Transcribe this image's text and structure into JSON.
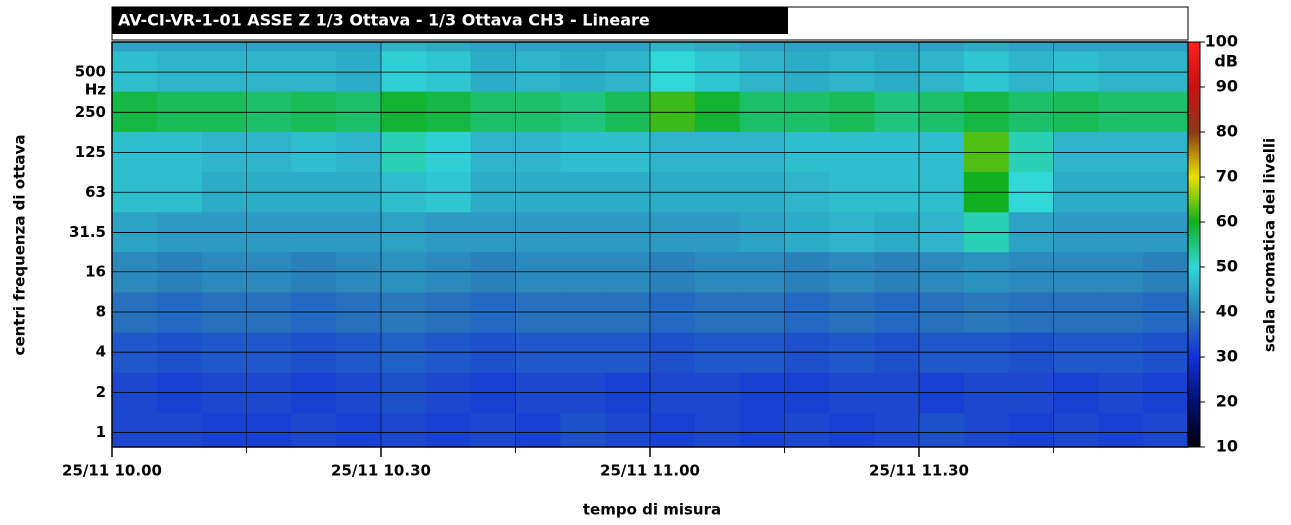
{
  "chart_data": {
    "type": "heatmap",
    "title": "AV-CI-VR-1-01 ASSE Z 1/3 Ottava - 1/3 Ottava CH3 - Lineare",
    "xlabel": "tempo di misura",
    "ylabel": "centri frequenza di ottava",
    "yunit": "Hz",
    "colorbar_label": "scala cromatica dei livelli",
    "colorbar_unit": "dB",
    "xlim": [
      0,
      120
    ],
    "xticks": [
      {
        "value": 0,
        "label": "25/11 10.00"
      },
      {
        "value": 30,
        "label": "25/11 10.30"
      },
      {
        "value": 60,
        "label": "25/11 11.00"
      },
      {
        "value": 90,
        "label": "25/11 11.30"
      }
    ],
    "xminorticks": [
      15,
      45,
      75,
      105
    ],
    "ylim": [
      0.78,
      840
    ],
    "ylog": true,
    "yticks": [
      1,
      2,
      4,
      8,
      16,
      31.5,
      63,
      125,
      250,
      500
    ],
    "grid": true,
    "xbins": [
      0,
      5,
      10,
      15,
      20,
      25,
      30,
      35,
      40,
      45,
      50,
      55,
      60,
      65,
      70,
      75,
      80,
      85,
      90,
      95,
      100,
      105,
      110,
      115,
      120
    ],
    "ybins": [
      0.78,
      1.41,
      2.83,
      5.66,
      11.3,
      22.6,
      45,
      90,
      180,
      360,
      720,
      840
    ],
    "zlim": [
      10,
      100
    ],
    "zticks": [
      10,
      20,
      30,
      40,
      50,
      60,
      70,
      80,
      90,
      100
    ],
    "colorscale": [
      "#000008",
      "#001070",
      "#1430d8",
      "#2a80b8",
      "#30d8d8",
      "#10b020",
      "#e8e000",
      "#8b3a1a",
      "#c81010",
      "#ff2020"
    ],
    "z": [
      [
        33,
        33,
        32,
        32,
        33,
        32,
        33,
        32,
        33,
        32,
        34,
        33,
        32,
        33,
        32,
        33,
        32,
        33,
        34,
        33,
        32,
        33,
        32,
        33
      ],
      [
        33,
        32,
        33,
        33,
        32,
        33,
        34,
        33,
        32,
        33,
        33,
        32,
        33,
        33,
        32,
        32,
        33,
        33,
        32,
        33,
        33,
        32,
        33,
        32
      ],
      [
        35,
        34,
        35,
        35,
        34,
        35,
        36,
        35,
        34,
        35,
        35,
        35,
        34,
        35,
        35,
        34,
        35,
        34,
        35,
        35,
        34,
        35,
        35,
        34
      ],
      [
        38,
        37,
        38,
        38,
        37,
        38,
        39,
        38,
        37,
        38,
        38,
        38,
        37,
        38,
        38,
        37,
        38,
        37,
        38,
        39,
        38,
        38,
        38,
        37
      ],
      [
        41,
        40,
        41,
        41,
        40,
        41,
        42,
        41,
        40,
        41,
        41,
        41,
        40,
        41,
        41,
        40,
        41,
        40,
        41,
        42,
        41,
        41,
        41,
        40
      ],
      [
        44,
        43,
        43,
        43,
        43,
        43,
        44,
        43,
        43,
        43,
        43,
        43,
        43,
        43,
        44,
        45,
        46,
        45,
        46,
        52,
        44,
        43,
        43,
        43
      ],
      [
        47,
        47,
        45,
        45,
        45,
        45,
        47,
        48,
        45,
        45,
        45,
        45,
        45,
        45,
        45,
        46,
        47,
        47,
        47,
        60,
        50,
        45,
        45,
        45
      ],
      [
        47,
        47,
        46,
        46,
        47,
        46,
        52,
        49,
        46,
        46,
        47,
        47,
        46,
        46,
        46,
        47,
        47,
        47,
        47,
        63,
        52,
        46,
        46,
        46
      ],
      [
        58,
        57,
        57,
        56,
        57,
        56,
        59,
        58,
        56,
        56,
        55,
        57,
        62,
        59,
        56,
        56,
        57,
        55,
        56,
        58,
        56,
        57,
        56,
        56
      ],
      [
        47,
        46,
        46,
        46,
        46,
        45,
        49,
        48,
        45,
        46,
        45,
        46,
        50,
        48,
        46,
        45,
        46,
        45,
        46,
        48,
        46,
        47,
        46,
        46
      ],
      [
        44,
        44,
        44,
        44,
        44,
        44,
        46,
        45,
        44,
        44,
        44,
        44,
        46,
        45,
        44,
        44,
        44,
        44,
        44,
        45,
        44,
        44,
        44,
        44
      ]
    ]
  }
}
